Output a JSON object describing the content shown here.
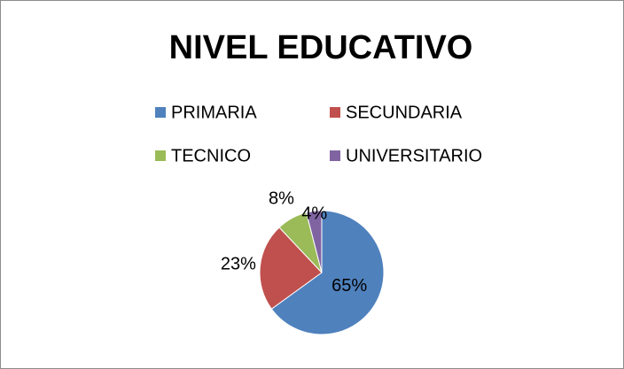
{
  "chart_data": {
    "type": "pie",
    "title": "NIVEL EDUCATIVO",
    "categories": [
      "PRIMARIA",
      "SECUNDARIA",
      "TECNICO",
      "UNIVERSITARIO"
    ],
    "values": [
      65,
      23,
      8,
      4
    ],
    "value_labels": [
      "65%",
      "23%",
      "8%",
      "4%"
    ],
    "colors": [
      "#4f81bd",
      "#c0504d",
      "#9bbb59",
      "#8064a2"
    ]
  }
}
